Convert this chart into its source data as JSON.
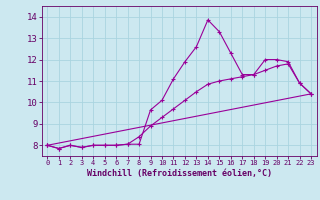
{
  "background_color": "#cce8f0",
  "grid_color": "#aad4e0",
  "line_color": "#990099",
  "xlabel": "Windchill (Refroidissement éolien,°C)",
  "xlabel_color": "#660066",
  "tick_color": "#660066",
  "xlim": [
    -0.5,
    23.5
  ],
  "ylim": [
    7.5,
    14.5
  ],
  "yticks": [
    8,
    9,
    10,
    11,
    12,
    13,
    14
  ],
  "xticks": [
    0,
    1,
    2,
    3,
    4,
    5,
    6,
    7,
    8,
    9,
    10,
    11,
    12,
    13,
    14,
    15,
    16,
    17,
    18,
    19,
    20,
    21,
    22,
    23
  ],
  "line1_x": [
    0,
    1,
    2,
    3,
    4,
    5,
    6,
    7,
    8,
    9,
    10,
    11,
    12,
    13,
    14,
    15,
    16,
    17,
    18,
    19,
    20,
    21,
    22,
    23
  ],
  "line1_y": [
    8.0,
    7.85,
    8.0,
    7.9,
    8.0,
    8.0,
    8.0,
    8.05,
    8.05,
    9.65,
    10.1,
    11.1,
    11.9,
    12.6,
    13.85,
    13.3,
    12.3,
    11.3,
    11.3,
    12.0,
    12.0,
    11.9,
    10.9,
    10.4
  ],
  "line2_x": [
    0,
    1,
    2,
    3,
    4,
    5,
    6,
    7,
    8,
    9,
    10,
    11,
    12,
    13,
    14,
    15,
    16,
    17,
    18,
    19,
    20,
    21,
    22,
    23
  ],
  "line2_y": [
    8.0,
    7.85,
    8.0,
    7.9,
    8.0,
    8.0,
    8.0,
    8.05,
    8.4,
    8.9,
    9.3,
    9.7,
    10.1,
    10.5,
    10.85,
    11.0,
    11.1,
    11.2,
    11.3,
    11.5,
    11.7,
    11.8,
    10.9,
    10.4
  ],
  "line3_x": [
    0,
    23
  ],
  "line3_y": [
    8.0,
    10.4
  ]
}
